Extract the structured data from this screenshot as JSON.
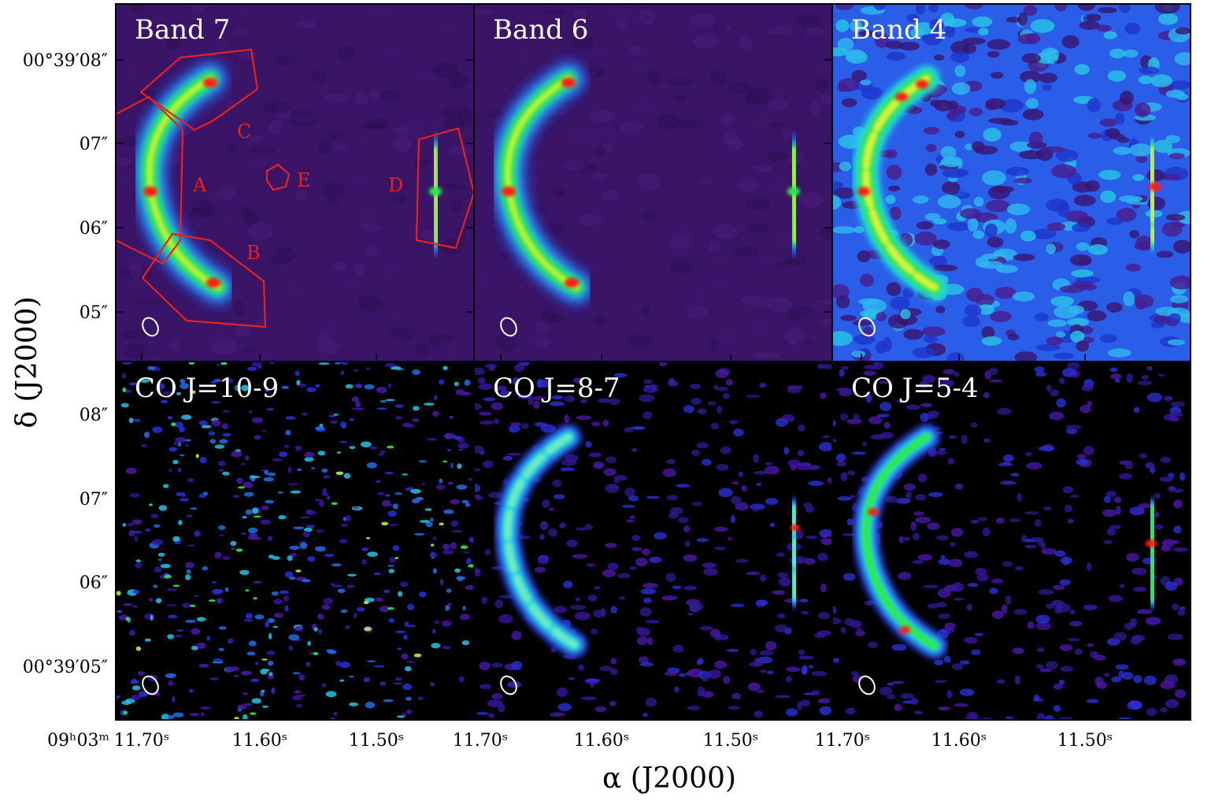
{
  "figure": {
    "colors": {
      "background_dark": "#000000",
      "background_purple": "#3a1466",
      "emission_low": "#2a3bd6",
      "emission_mid": "#23d6e8",
      "emission_high": "#2ee84a",
      "emission_peak": "#ff1a14",
      "region_outline": "#e8211c",
      "label_text": "#ffffff"
    },
    "axes": {
      "x_title": "α (J2000)",
      "y_title": "δ (J2000)",
      "x_ticks_group": [
        "11.70ˢ",
        "11.60ˢ",
        "11.50ˢ"
      ],
      "x_first_tick_prefix": "09ʰ03ᵐ",
      "y_ticks_top": [
        "00°39′08″",
        "07″",
        "06″",
        "05″"
      ],
      "y_ticks_bottom": [
        "08″",
        "07″",
        "06″",
        "00°39′05″"
      ]
    },
    "panels": [
      {
        "label": "Band 7",
        "style": "dust-purple",
        "regions": [
          "A",
          "B",
          "C",
          "D",
          "E"
        ]
      },
      {
        "label": "Band 6",
        "style": "dust-purple"
      },
      {
        "label": "Band 4",
        "style": "dust-noisy"
      },
      {
        "label": "CO J=10-9",
        "style": "line-sparse"
      },
      {
        "label": "CO J=8-7",
        "style": "line-ring"
      },
      {
        "label": "CO J=5-4",
        "style": "line-ring-strong"
      }
    ]
  }
}
